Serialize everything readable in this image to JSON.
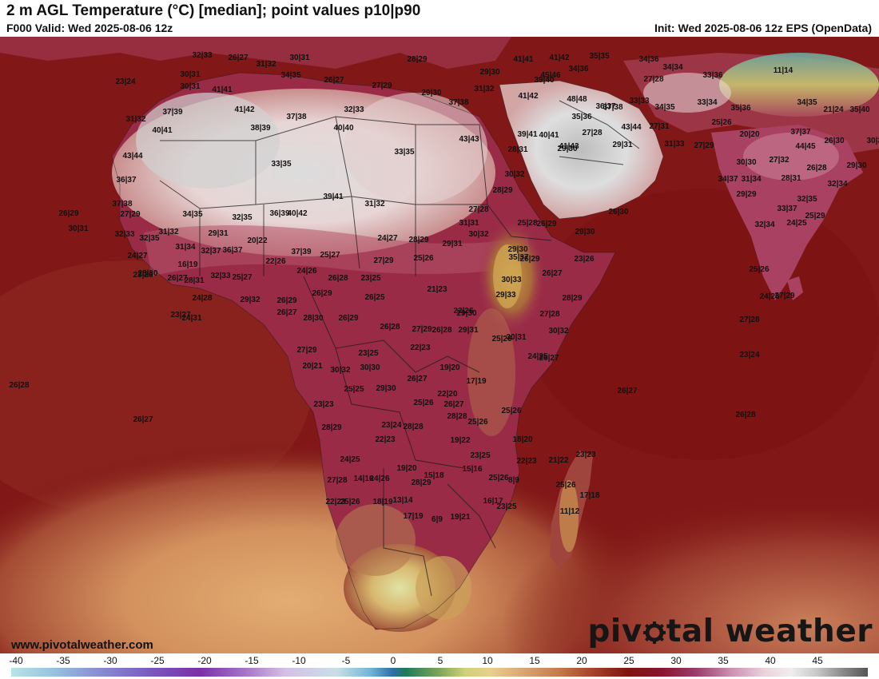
{
  "header": {
    "title": "2 m AGL Temperature (°C) [median]; point values p10|p90",
    "valid": "F000 Valid: Wed 2025-08-06 12z",
    "init": "Init: Wed 2025-08-06 12z EPS (OpenData)"
  },
  "footer": {
    "website": "www.pivotalweather.com",
    "brand_left": "piv",
    "brand_right": "tal weather",
    "brand_gear_icon": "gear-icon"
  },
  "colorbar": {
    "unit": "°C",
    "ticks": [
      "-40",
      "-35",
      "-30",
      "-25",
      "-20",
      "-15",
      "-10",
      "-5",
      "0",
      "5",
      "10",
      "15",
      "20",
      "25",
      "30",
      "35",
      "40",
      "45"
    ]
  },
  "map": {
    "region": "Africa and surrounding oceans",
    "colors": {
      "ocean_warm": "#7d1212",
      "ocean_cool": "#d99e68",
      "hot_desert": "#d8d8d8",
      "highland": "#c8973c",
      "land_warm": "#9c2e4c"
    },
    "point_values": [
      "32|33",
      "26|27",
      "31|32",
      "30|31",
      "28|29",
      "23|24",
      "30|31",
      "34|35",
      "26|27",
      "27|29",
      "29|30",
      "29|30",
      "41|41",
      "41|42",
      "35|35",
      "34|36",
      "30|31",
      "34|34",
      "41|42",
      "39|40",
      "37|38",
      "31|32",
      "45|46",
      "34|36",
      "27|28",
      "33|36",
      "11|14",
      "34|35",
      "41|41",
      "41|42",
      "48|48",
      "36|37",
      "33|33",
      "34|35",
      "33|34",
      "35|36",
      "31|32",
      "37|39",
      "32|33",
      "37|38",
      "35|36",
      "37|38",
      "43|44",
      "39|41",
      "27|31",
      "25|26",
      "21|24",
      "35|40",
      "40|41",
      "38|39",
      "40|40",
      "43|43",
      "40|41",
      "41|43",
      "27|28",
      "29|31",
      "31|33",
      "27|29",
      "20|20",
      "37|37",
      "44|45",
      "43|44",
      "33|35",
      "28|31",
      "29|30",
      "33|35",
      "26|30",
      "36|37",
      "30|32",
      "30|30",
      "27|32",
      "26|28",
      "29|30",
      "37|38",
      "34|37",
      "39|41",
      "31|32",
      "28|29",
      "29|29",
      "30|32",
      "31|34",
      "28|31",
      "32|34",
      "32|35",
      "40|42",
      "27|28",
      "26|30",
      "25|29",
      "33|37",
      "32|35",
      "36|39",
      "31|31",
      "25|28",
      "32|34",
      "24|25",
      "30|32",
      "26|29",
      "34|35",
      "30|31",
      "27|29",
      "35|37",
      "26|29",
      "29|30",
      "32|33",
      "31|32",
      "29|31",
      "32|35",
      "32|37",
      "20|22",
      "24|27",
      "28|29",
      "29|31",
      "29|30",
      "24|27",
      "31|34",
      "36|37",
      "37|39",
      "25|27",
      "27|29",
      "25|26",
      "26|29",
      "23|26",
      "28|30",
      "16|19",
      "28|31",
      "32|33",
      "22|26",
      "24|26",
      "26|28",
      "23|25",
      "21|23",
      "30|33",
      "26|27",
      "25|26",
      "23|26",
      "26|27",
      "25|27",
      "26|29",
      "26|25",
      "22|26",
      "29|33",
      "28|29",
      "24|26",
      "27|29",
      "26|29",
      "24|28",
      "23|27",
      "29|32",
      "26|27",
      "28|30",
      "26|29",
      "26|28",
      "29|30",
      "27|28",
      "30|32",
      "24|31",
      "27|29",
      "23|25",
      "27|29",
      "26|28",
      "29|31",
      "25|26",
      "30|31",
      "24|25",
      "26|27",
      "20|21",
      "30|32",
      "27|28",
      "23|24",
      "22|23",
      "26|27",
      "19|20",
      "30|30",
      "22|20",
      "29|30",
      "25|26",
      "26|27",
      "17|19",
      "25|25",
      "25|26",
      "26|27",
      "26|28",
      "23|23",
      "26|27",
      "28|28",
      "25|26",
      "26|28",
      "28|29",
      "23|24",
      "28|28",
      "19|22",
      "19|20",
      "22|23",
      "28|29",
      "23|25",
      "24|25",
      "15|18",
      "18|20",
      "22|23",
      "21|22",
      "23|23",
      "27|28",
      "14|16",
      "15|16",
      "25|26",
      "24|26",
      "22|23",
      "25|26",
      "17|18",
      "23|25",
      "18|19",
      "25|26",
      "13|14",
      "17|19",
      "6|9",
      "19|21",
      "8|9",
      "16|17",
      "11|12"
    ]
  }
}
